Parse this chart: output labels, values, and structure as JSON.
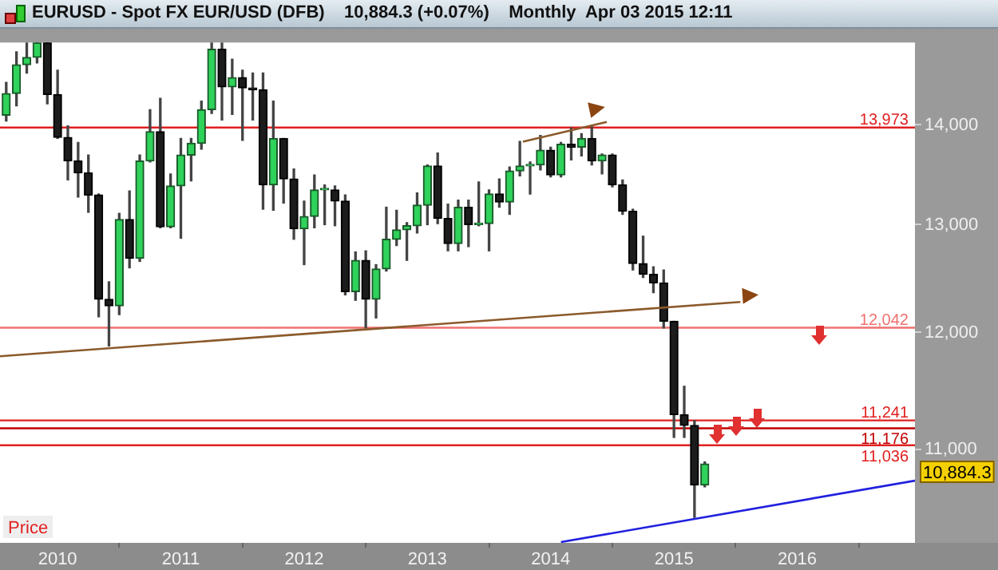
{
  "chart_data": {
    "type": "candlestick",
    "title": "EURUSD - Spot FX EUR/USD (DFB)    10,884.3 (+0.07%)    Monthly  Apr 03 2015 12:11",
    "x": [
      "2009-08",
      "2009-09",
      "2009-10",
      "2009-11",
      "2009-12",
      "2010-01",
      "2010-02",
      "2010-03",
      "2010-04",
      "2010-05",
      "2010-06",
      "2010-07",
      "2010-08",
      "2010-09",
      "2010-10",
      "2010-11",
      "2010-12",
      "2011-01",
      "2011-02",
      "2011-03",
      "2011-04",
      "2011-05",
      "2011-06",
      "2011-07",
      "2011-08",
      "2011-09",
      "2011-10",
      "2011-11",
      "2011-12",
      "2012-01",
      "2012-02",
      "2012-03",
      "2012-04",
      "2012-05",
      "2012-06",
      "2012-07",
      "2012-08",
      "2012-09",
      "2012-10",
      "2012-11",
      "2012-12",
      "2013-01",
      "2013-02",
      "2013-03",
      "2013-04",
      "2013-05",
      "2013-06",
      "2013-07",
      "2013-08",
      "2013-09",
      "2013-10",
      "2013-11",
      "2013-12",
      "2014-01",
      "2014-02",
      "2014-03",
      "2014-04",
      "2014-05",
      "2014-06",
      "2014-07",
      "2014-08",
      "2014-09",
      "2014-10",
      "2014-11",
      "2014-12",
      "2015-01",
      "2015-02",
      "2015-03",
      "2015-04"
    ],
    "ohlc": [
      [
        14100,
        14450,
        14040,
        14330
      ],
      [
        14330,
        14780,
        14200,
        14640
      ],
      [
        14640,
        14880,
        14550,
        14720
      ],
      [
        14720,
        14880,
        14660,
        14880
      ],
      [
        14880,
        14880,
        14220,
        14320
      ],
      [
        14320,
        14580,
        13860,
        13870
      ],
      [
        13870,
        13990,
        13440,
        13630
      ],
      [
        13630,
        13820,
        13270,
        13510
      ],
      [
        13510,
        13690,
        13120,
        13290
      ],
      [
        13290,
        13300,
        12140,
        12300
      ],
      [
        12300,
        12460,
        11880,
        12240
      ],
      [
        12240,
        13110,
        12160,
        13050
      ],
      [
        13050,
        13330,
        12590,
        12680
      ],
      [
        12680,
        13690,
        12650,
        13630
      ],
      [
        13630,
        14160,
        13620,
        13930
      ],
      [
        13930,
        14280,
        12970,
        12980
      ],
      [
        12980,
        13500,
        12970,
        13380
      ],
      [
        13380,
        13860,
        12870,
        13690
      ],
      [
        13690,
        13860,
        13430,
        13810
      ],
      [
        13810,
        14250,
        13750,
        14160
      ],
      [
        14160,
        14880,
        14120,
        14810
      ],
      [
        14810,
        14880,
        14050,
        14400
      ],
      [
        14400,
        14700,
        14110,
        14500
      ],
      [
        14500,
        14580,
        13840,
        14390
      ],
      [
        14390,
        14550,
        14050,
        14370
      ],
      [
        14370,
        14550,
        13150,
        13390
      ],
      [
        13390,
        14250,
        13140,
        13860
      ],
      [
        13860,
        13860,
        13210,
        13450
      ],
      [
        13450,
        13550,
        12860,
        12960
      ],
      [
        12960,
        13230,
        12620,
        13080
      ],
      [
        13080,
        13490,
        12970,
        13340
      ],
      [
        13340,
        13390,
        13000,
        13340
      ],
      [
        13340,
        13380,
        12990,
        13230
      ],
      [
        13230,
        13290,
        12340,
        12370
      ],
      [
        12370,
        12740,
        12290,
        12660
      ],
      [
        12660,
        12750,
        12040,
        12300
      ],
      [
        12300,
        12620,
        12130,
        12580
      ],
      [
        12580,
        13170,
        12560,
        12860
      ],
      [
        12860,
        13140,
        12800,
        12950
      ],
      [
        12950,
        13020,
        12660,
        12990
      ],
      [
        12990,
        13310,
        12920,
        13190
      ],
      [
        13190,
        13590,
        13000,
        13580
      ],
      [
        13580,
        13710,
        13010,
        13060
      ],
      [
        13060,
        13200,
        12750,
        12820
      ],
      [
        12820,
        13240,
        12750,
        13170
      ],
      [
        13170,
        13240,
        12790,
        13000
      ],
      [
        13000,
        13420,
        12990,
        13010
      ],
      [
        13010,
        13340,
        12750,
        13300
      ],
      [
        13300,
        13450,
        13170,
        13220
      ],
      [
        13220,
        13570,
        13100,
        13530
      ],
      [
        13530,
        13830,
        13480,
        13580
      ],
      [
        13580,
        13620,
        13300,
        13590
      ],
      [
        13590,
        13890,
        13540,
        13740
      ],
      [
        13740,
        13770,
        13470,
        13490
      ],
      [
        13490,
        13820,
        13470,
        13800
      ],
      [
        13800,
        13970,
        13640,
        13770
      ],
      [
        13770,
        13910,
        13680,
        13860
      ],
      [
        13860,
        13990,
        13590,
        13630
      ],
      [
        13630,
        13700,
        13500,
        13690
      ],
      [
        13690,
        13700,
        13370,
        13390
      ],
      [
        13390,
        13440,
        13100,
        13130
      ],
      [
        13130,
        13150,
        12570,
        12630
      ],
      [
        12630,
        12890,
        12500,
        12530
      ],
      [
        12530,
        12600,
        12360,
        12450
      ],
      [
        12450,
        12570,
        12040,
        12100
      ],
      [
        12100,
        12100,
        11100,
        11290
      ],
      [
        11290,
        11530,
        11100,
        11200
      ],
      [
        11200,
        11240,
        10460,
        10715
      ],
      [
        10715,
        10900,
        10700,
        10884.3
      ]
    ],
    "series": [
      {
        "type": "line",
        "color": "#8b5a2b",
        "x": [
          "2009-07-13",
          "2015-07-15"
        ],
        "values": [
          11790,
          12275
        ]
      },
      {
        "type": "line",
        "color": "#8b5a2b",
        "x": [
          "2013-10-10",
          "2014-06-15"
        ],
        "values": [
          13826,
          14030
        ]
      },
      {
        "type": "line",
        "color": "#2020e0",
        "x": [
          "2014-02-01",
          "2016-12-15"
        ],
        "values": [
          10270,
          10749
        ]
      }
    ],
    "xlim": [
      "2009-07-13",
      "2016-12-15"
    ],
    "xticks": [
      {
        "value": "2010",
        "label": "2010"
      },
      {
        "value": "2011",
        "label": "2011"
      },
      {
        "value": "2012",
        "label": "2012"
      },
      {
        "value": "2013",
        "label": "2013"
      },
      {
        "value": "2014",
        "label": "2014"
      },
      {
        "value": "2015",
        "label": "2015"
      },
      {
        "value": "2016",
        "label": "2016"
      }
    ],
    "ylim": [
      10264,
      14884
    ],
    "yticks": [
      {
        "value": 11000,
        "label": "11,000"
      },
      {
        "value": 12000,
        "label": "12,000"
      },
      {
        "value": 13000,
        "label": "13,000"
      },
      {
        "value": 14000,
        "label": "14,000"
      }
    ],
    "log": "y",
    "grid": false,
    "legend": false,
    "ref_lines": [
      {
        "axis": "y",
        "value": 13973,
        "label": "13,973",
        "color": "#e02020"
      },
      {
        "axis": "y",
        "value": 12042,
        "label": "12,042",
        "color": "#f07070"
      },
      {
        "axis": "y",
        "value": 11241,
        "label": "11,241",
        "color": "#e02020"
      },
      {
        "axis": "y",
        "value": 11176,
        "label": "11,176",
        "color": "#c00000"
      },
      {
        "axis": "y",
        "value": 11036,
        "label": "11,036",
        "color": "#e02020"
      }
    ],
    "annotations": [
      "Price",
      "10,884.3"
    ]
  }
}
